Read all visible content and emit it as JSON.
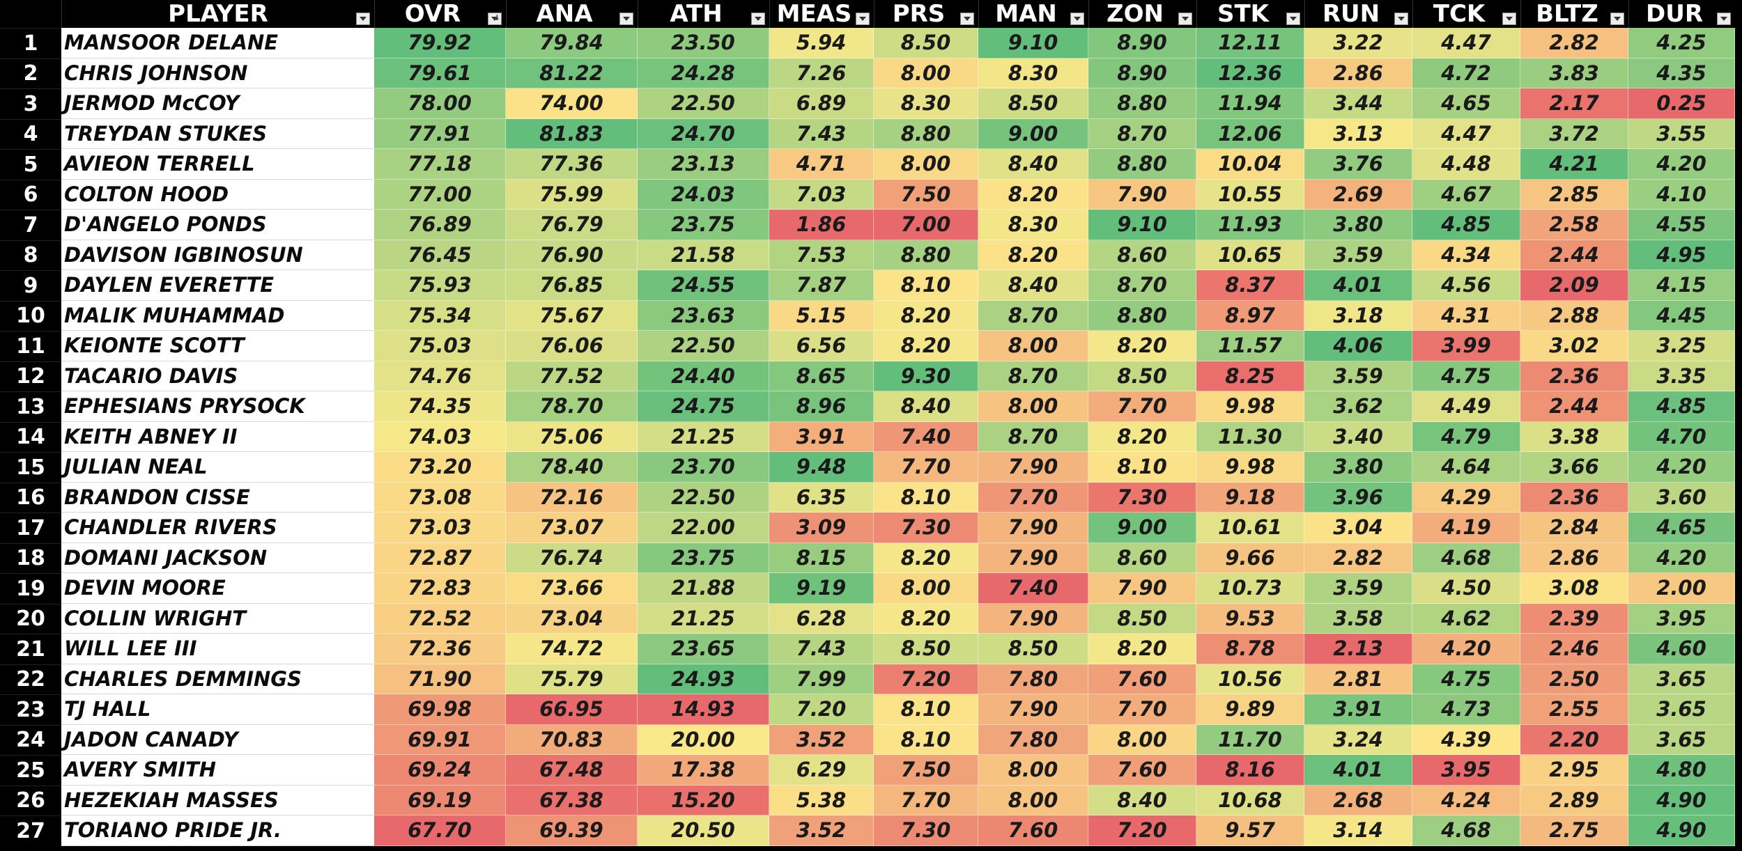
{
  "table": {
    "player_header": "PLAYER",
    "columns": [
      "OVR",
      "ANA",
      "ATH",
      "MEAS",
      "PRS",
      "MAN",
      "ZON",
      "STK",
      "RUN",
      "TCK",
      "BLTZ",
      "DUR"
    ],
    "sorted_column": "OVR",
    "rows": [
      {
        "rank": "1",
        "name": "MANSOOR DELANE",
        "values": [
          "79.92",
          "79.84",
          "23.50",
          "5.94",
          "8.50",
          "9.10",
          "8.90",
          "12.11",
          "3.22",
          "4.47",
          "2.82",
          "4.25"
        ]
      },
      {
        "rank": "2",
        "name": "CHRIS JOHNSON",
        "values": [
          "79.61",
          "81.22",
          "24.28",
          "7.26",
          "8.00",
          "8.30",
          "8.90",
          "12.36",
          "2.86",
          "4.72",
          "3.83",
          "4.35"
        ]
      },
      {
        "rank": "3",
        "name": "JERMOD McCOY",
        "values": [
          "78.00",
          "74.00",
          "22.50",
          "6.89",
          "8.30",
          "8.50",
          "8.80",
          "11.94",
          "3.44",
          "4.65",
          "2.17",
          "0.25"
        ]
      },
      {
        "rank": "4",
        "name": "TREYDAN STUKES",
        "values": [
          "77.91",
          "81.83",
          "24.70",
          "7.43",
          "8.80",
          "9.00",
          "8.70",
          "12.06",
          "3.13",
          "4.47",
          "3.72",
          "3.55"
        ]
      },
      {
        "rank": "5",
        "name": "AVIEON TERRELL",
        "values": [
          "77.18",
          "77.36",
          "23.13",
          "4.71",
          "8.00",
          "8.40",
          "8.80",
          "10.04",
          "3.76",
          "4.48",
          "4.21",
          "4.20"
        ]
      },
      {
        "rank": "6",
        "name": "COLTON HOOD",
        "values": [
          "77.00",
          "75.99",
          "24.03",
          "7.03",
          "7.50",
          "8.20",
          "7.90",
          "10.55",
          "2.69",
          "4.67",
          "2.85",
          "4.10"
        ]
      },
      {
        "rank": "7",
        "name": "D'ANGELO PONDS",
        "values": [
          "76.89",
          "76.79",
          "23.75",
          "1.86",
          "7.00",
          "8.30",
          "9.10",
          "11.93",
          "3.80",
          "4.85",
          "2.58",
          "4.55"
        ]
      },
      {
        "rank": "8",
        "name": "DAVISON IGBINOSUN",
        "values": [
          "76.45",
          "76.90",
          "21.58",
          "7.53",
          "8.80",
          "8.20",
          "8.60",
          "10.65",
          "3.59",
          "4.34",
          "2.44",
          "4.95"
        ]
      },
      {
        "rank": "9",
        "name": "DAYLEN EVERETTE",
        "values": [
          "75.93",
          "76.85",
          "24.55",
          "7.87",
          "8.10",
          "8.40",
          "8.70",
          "8.37",
          "4.01",
          "4.56",
          "2.09",
          "4.15"
        ]
      },
      {
        "rank": "10",
        "name": "MALIK MUHAMMAD",
        "values": [
          "75.34",
          "75.67",
          "23.63",
          "5.15",
          "8.20",
          "8.70",
          "8.80",
          "8.97",
          "3.18",
          "4.31",
          "2.88",
          "4.45"
        ]
      },
      {
        "rank": "11",
        "name": "KEIONTE SCOTT",
        "values": [
          "75.03",
          "76.06",
          "22.50",
          "6.56",
          "8.20",
          "8.00",
          "8.20",
          "11.57",
          "4.06",
          "3.99",
          "3.02",
          "3.25"
        ]
      },
      {
        "rank": "12",
        "name": "TACARIO DAVIS",
        "values": [
          "74.76",
          "77.52",
          "24.40",
          "8.65",
          "9.30",
          "8.70",
          "8.50",
          "8.25",
          "3.59",
          "4.75",
          "2.36",
          "3.35"
        ]
      },
      {
        "rank": "13",
        "name": "EPHESIANS PRYSOCK",
        "values": [
          "74.35",
          "78.70",
          "24.75",
          "8.96",
          "8.40",
          "8.00",
          "7.70",
          "9.98",
          "3.62",
          "4.49",
          "2.44",
          "4.85"
        ]
      },
      {
        "rank": "14",
        "name": "KEITH ABNEY II",
        "values": [
          "74.03",
          "75.06",
          "21.25",
          "3.91",
          "7.40",
          "8.70",
          "8.20",
          "11.30",
          "3.40",
          "4.79",
          "3.38",
          "4.70"
        ]
      },
      {
        "rank": "15",
        "name": "JULIAN NEAL",
        "values": [
          "73.20",
          "78.40",
          "23.70",
          "9.48",
          "7.70",
          "7.90",
          "8.10",
          "9.98",
          "3.80",
          "4.64",
          "3.66",
          "4.20"
        ]
      },
      {
        "rank": "16",
        "name": "BRANDON CISSE",
        "values": [
          "73.08",
          "72.16",
          "22.50",
          "6.35",
          "8.10",
          "7.70",
          "7.30",
          "9.18",
          "3.96",
          "4.29",
          "2.36",
          "3.60"
        ]
      },
      {
        "rank": "17",
        "name": "CHANDLER RIVERS",
        "values": [
          "73.03",
          "73.07",
          "22.00",
          "3.09",
          "7.30",
          "7.90",
          "9.00",
          "10.61",
          "3.04",
          "4.19",
          "2.84",
          "4.65"
        ]
      },
      {
        "rank": "18",
        "name": "DOMANI JACKSON",
        "values": [
          "72.87",
          "76.74",
          "23.75",
          "8.15",
          "8.20",
          "7.90",
          "8.60",
          "9.66",
          "2.82",
          "4.68",
          "2.86",
          "4.20"
        ]
      },
      {
        "rank": "19",
        "name": "DEVIN MOORE",
        "values": [
          "72.83",
          "73.66",
          "21.88",
          "9.19",
          "8.00",
          "7.40",
          "7.90",
          "10.73",
          "3.59",
          "4.50",
          "3.08",
          "2.00"
        ]
      },
      {
        "rank": "20",
        "name": "COLLIN WRIGHT",
        "values": [
          "72.52",
          "73.04",
          "21.25",
          "6.28",
          "8.20",
          "7.90",
          "8.50",
          "9.53",
          "3.58",
          "4.62",
          "2.39",
          "3.95"
        ]
      },
      {
        "rank": "21",
        "name": "WILL LEE III",
        "values": [
          "72.36",
          "74.72",
          "23.65",
          "7.43",
          "8.50",
          "8.50",
          "8.20",
          "8.78",
          "2.13",
          "4.20",
          "2.46",
          "4.60"
        ]
      },
      {
        "rank": "22",
        "name": "CHARLES DEMMINGS",
        "values": [
          "71.90",
          "75.79",
          "24.93",
          "7.99",
          "7.20",
          "7.80",
          "7.60",
          "10.56",
          "2.81",
          "4.75",
          "2.50",
          "3.65"
        ]
      },
      {
        "rank": "23",
        "name": "TJ HALL",
        "values": [
          "69.98",
          "66.95",
          "14.93",
          "7.20",
          "8.10",
          "7.90",
          "7.70",
          "9.89",
          "3.91",
          "4.73",
          "2.55",
          "3.65"
        ]
      },
      {
        "rank": "24",
        "name": "JADON CANADY",
        "values": [
          "69.91",
          "70.83",
          "20.00",
          "3.52",
          "8.10",
          "7.80",
          "8.00",
          "11.70",
          "3.24",
          "4.39",
          "2.20",
          "3.65"
        ]
      },
      {
        "rank": "25",
        "name": "AVERY SMITH",
        "values": [
          "69.24",
          "67.48",
          "17.38",
          "6.29",
          "7.50",
          "8.00",
          "7.60",
          "8.16",
          "4.01",
          "3.95",
          "2.95",
          "4.80"
        ]
      },
      {
        "rank": "26",
        "name": "HEZEKIAH MASSES",
        "values": [
          "69.19",
          "67.38",
          "15.20",
          "5.38",
          "7.70",
          "8.00",
          "8.40",
          "10.68",
          "2.68",
          "4.24",
          "2.89",
          "4.90"
        ]
      },
      {
        "rank": "27",
        "name": "TORIANO PRIDE JR.",
        "values": [
          "67.70",
          "69.39",
          "20.50",
          "3.52",
          "7.30",
          "7.60",
          "7.20",
          "9.57",
          "3.14",
          "4.68",
          "2.75",
          "4.90"
        ]
      }
    ]
  },
  "colors": {
    "scale_low": "#e8696b",
    "scale_mid": "#fce98a",
    "scale_high": "#63be7b",
    "header_bg": "#000000",
    "header_text": "#ffffff"
  },
  "icons": {
    "filter": "filter-dropdown-icon",
    "sort": "sort-descending-icon"
  }
}
